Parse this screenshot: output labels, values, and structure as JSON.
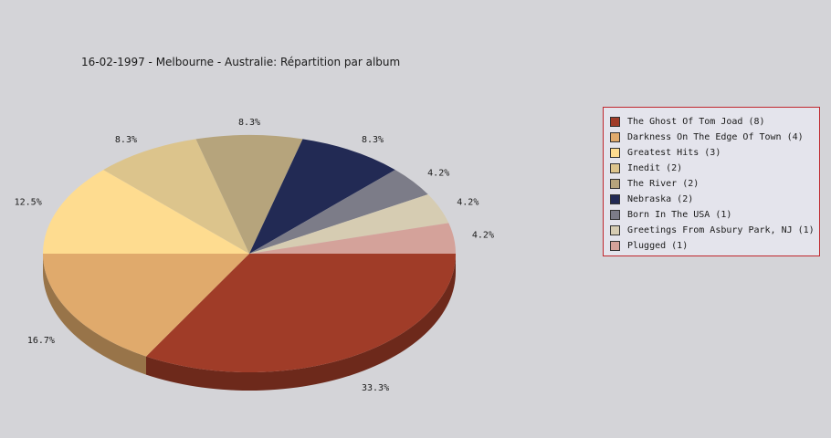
{
  "chart_data": {
    "type": "pie",
    "title": "16-02-1997 - Melbourne - Australie:  Répartition par album",
    "slices": [
      {
        "name": "The Ghost Of Tom Joad (8)",
        "value": 8,
        "label": "33.3%",
        "color": "#a03c28"
      },
      {
        "name": "Darkness On The Edge Of Town (4)",
        "value": 4,
        "label": "16.7%",
        "color": "#e0aa6c"
      },
      {
        "name": "Greatest Hits (3)",
        "value": 3,
        "label": "12.5%",
        "color": "#fedc90"
      },
      {
        "name": "Inedit (2)",
        "value": 2,
        "label": "8.3%",
        "color": "#dcc48c"
      },
      {
        "name": "The River (2)",
        "value": 2,
        "label": "8.3%",
        "color": "#b6a47c"
      },
      {
        "name": "Nebraska (2)",
        "value": 2,
        "label": "8.3%",
        "color": "#222a54"
      },
      {
        "name": "Born In The USA (1)",
        "value": 1,
        "label": "4.2%",
        "color": "#7c7c88"
      },
      {
        "name": "Greetings From Asbury Park, NJ (1)",
        "value": 1,
        "label": "4.2%",
        "color": "#d6ccb2"
      },
      {
        "name": "Plugged (1)",
        "value": 1,
        "label": "4.2%",
        "color": "#d4a29a"
      }
    ],
    "legend_position": "right"
  }
}
